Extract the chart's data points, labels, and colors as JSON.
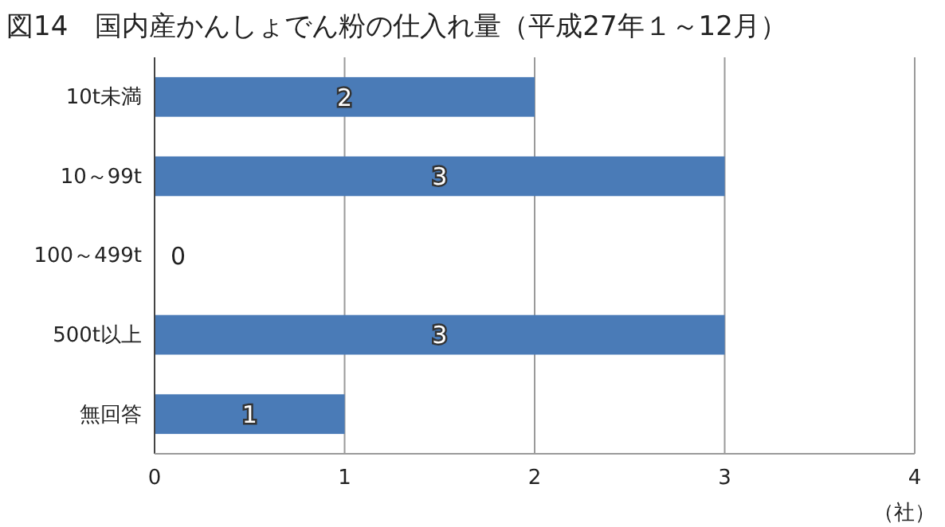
{
  "chart_data": {
    "type": "bar",
    "orientation": "horizontal",
    "title": "図14　国内産かんしょでん粉の仕入れ量（平成27年１～12月）",
    "xlabel": "（社）",
    "categories": [
      "10t未満",
      "10～99t",
      "100～499t",
      "500t以上",
      "無回答"
    ],
    "values": [
      2,
      3,
      0,
      3,
      1
    ],
    "color": "#4a7bb7",
    "xlim": [
      0,
      4
    ],
    "xticks": [
      0,
      1,
      2,
      3,
      4
    ],
    "grid": "x",
    "data_labels": true
  }
}
